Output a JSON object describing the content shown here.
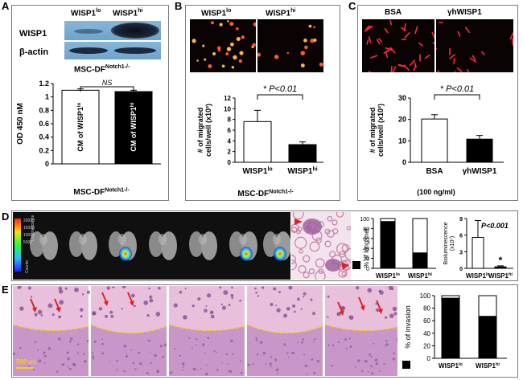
{
  "panels": {
    "a": "A",
    "b": "B",
    "c": "C",
    "d": "D",
    "e": "E"
  },
  "panel_a": {
    "group_lo": "WISP1",
    "group_lo_sup": "lo",
    "group_hi": "WISP1",
    "group_hi_sup": "hi",
    "blot_rows": [
      "WISP1",
      "β-actin"
    ],
    "cell_line": "MSC-DF",
    "cell_line_sup": "Notch1-/-",
    "bottom_label": "MSC-DF",
    "bottom_label_sup": "Notch1-/-",
    "bar_text_lo": "CM of WISP1",
    "bar_text_lo_sup": "lo",
    "bar_text_hi": "CM of WISP1",
    "bar_text_hi_sup": "hi",
    "sig": "NS"
  },
  "panel_b": {
    "img_lo": "WISP1",
    "img_lo_sup": "lo",
    "img_hi": "WISP1",
    "img_hi_sup": "hi",
    "sig": "* P<0.01",
    "xlabel": "MSC-DF",
    "xlabel_sup": "Notch1-/-"
  },
  "panel_c": {
    "img_a": "BSA",
    "img_b": "γhWISP1",
    "sig": "* P<0.01",
    "xnote": "(100 ng/ml)"
  },
  "panel_d": {
    "colorbar_ticks": [
      "20000",
      "15000",
      "10000",
      "5000"
    ],
    "colorbar_title": "Luminescence",
    "colorbar_units": "Counts",
    "legend_label": "% of lung met",
    "sig": "P<0.001",
    "star": "*"
  },
  "panel_e": {
    "scale_bar": "500um"
  },
  "chart_data": [
    {
      "id": "A-od",
      "type": "bar",
      "categories": [
        "CM of WISP1lo",
        "CM of WISP1hi"
      ],
      "values": [
        1.1,
        1.08
      ],
      "errors": [
        0.02,
        0.02
      ],
      "colors": [
        "#ffffff",
        "#000000"
      ],
      "ylabel": "OD 450 nM",
      "ylim": [
        0,
        1.2
      ],
      "yticks": [
        "0",
        "0.2",
        "0.4",
        "0.6",
        "0.8",
        "1",
        "1.2"
      ],
      "xlabel": "MSC-DFNotch1-/-"
    },
    {
      "id": "B-migration",
      "type": "bar",
      "categories": [
        "WISP1lo",
        "WISP1hi"
      ],
      "tick_labels": [
        "WISP1",
        "WISP1"
      ],
      "tick_sups": [
        "lo",
        "hi"
      ],
      "values": [
        7.6,
        3.3
      ],
      "errors": [
        2.1,
        0.5
      ],
      "colors": [
        "#ffffff",
        "#000000"
      ],
      "ylabel": "# of migrated cells/well (x10²)",
      "ylim": [
        0,
        12
      ],
      "yticks": [
        "0",
        "2",
        "4",
        "6",
        "8",
        "10",
        "12"
      ]
    },
    {
      "id": "C-migration",
      "type": "bar",
      "categories": [
        "BSA",
        "γhWISP1"
      ],
      "tick_labels": [
        "BSA",
        "γhWISP1"
      ],
      "tick_sups": [
        "",
        ""
      ],
      "values": [
        20.2,
        10.8
      ],
      "errors": [
        2.0,
        1.7
      ],
      "colors": [
        "#ffffff",
        "#000000"
      ],
      "ylabel": "# of migrated cells/well (x10²)",
      "ylim": [
        0,
        30
      ],
      "yticks": [
        "0",
        "10",
        "20",
        "30"
      ]
    },
    {
      "id": "D-lung-met",
      "type": "bar",
      "stacked": true,
      "categories": [
        "WISP1lo",
        "WISP1hi"
      ],
      "tick_labels": [
        "WISP1",
        "WISP1"
      ],
      "tick_sups": [
        "lo",
        "hi"
      ],
      "values": [
        94,
        31
      ],
      "colors": [
        "#000000",
        "#ffffff"
      ],
      "ylim": [
        0,
        100
      ],
      "yticks": [
        "0",
        "20",
        "40",
        "60",
        "80",
        "100"
      ]
    },
    {
      "id": "D-bioluminescence",
      "type": "bar",
      "categories": [
        "WISP1lo",
        "WISP1hi"
      ],
      "tick_labels": [
        "WISP1",
        "WISP1"
      ],
      "tick_sups": [
        "lo",
        "hi"
      ],
      "values": [
        6.2,
        0.3
      ],
      "errors": [
        3.4,
        0.2
      ],
      "colors": [
        "#ffffff",
        "#000000"
      ],
      "ylabel": "Bioluminescence (x10⁷)",
      "ylim": [
        0,
        10
      ],
      "yticks": [
        "0",
        "3",
        "6",
        "9"
      ]
    },
    {
      "id": "E-invasion",
      "type": "bar",
      "stacked": true,
      "categories": [
        "WISP1lo",
        "WISP1hi"
      ],
      "tick_labels": [
        "WISP1",
        "WISP1"
      ],
      "tick_sups": [
        "lo",
        "hi"
      ],
      "values": [
        96,
        67
      ],
      "colors": [
        "#000000",
        "#ffffff"
      ],
      "ylabel": "% of invasion",
      "ylim": [
        0,
        100
      ],
      "yticks": [
        "0",
        "20",
        "40",
        "60",
        "80",
        "100"
      ]
    }
  ]
}
